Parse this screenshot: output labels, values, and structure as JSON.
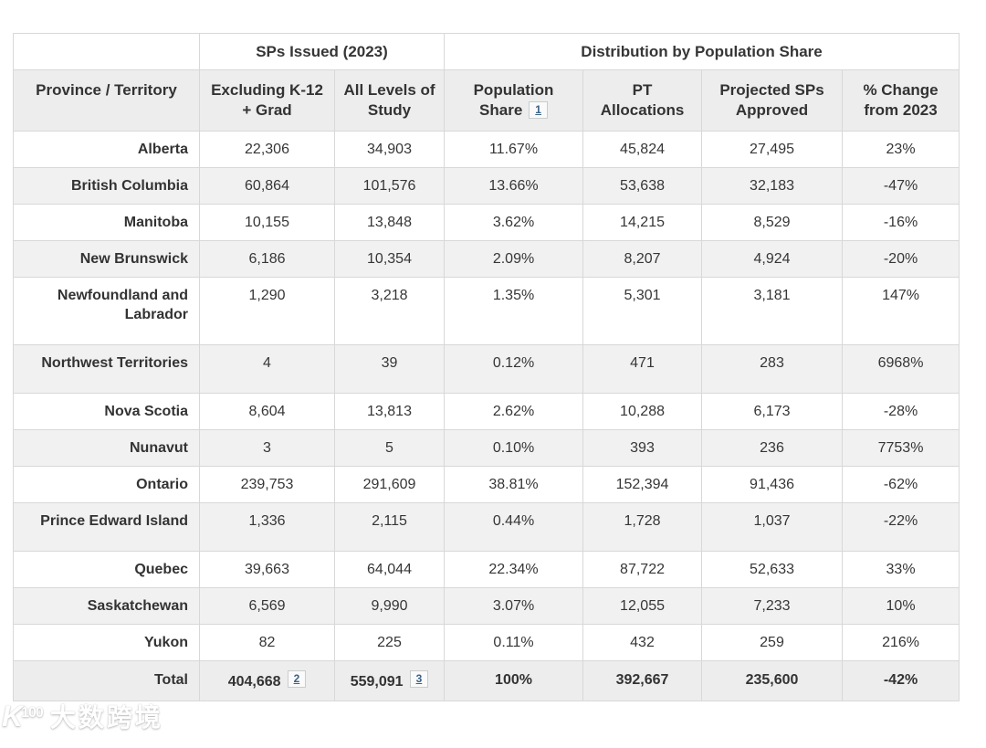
{
  "table": {
    "group_headers": {
      "sps_issued": "SPs Issued (2023)",
      "distribution": "Distribution by Population Share"
    },
    "columns": [
      "Province / Territory",
      "Excluding K-12 + Grad",
      "All Levels of Study",
      "Population Share",
      "PT Allocations",
      "Projected SPs Approved",
      "% Change from 2023"
    ],
    "footnotes": {
      "population_share": "1",
      "total_excluding": "2",
      "total_all_levels": "3"
    },
    "rows": [
      {
        "province": "Alberta",
        "cells": [
          "22,306",
          "34,903",
          "11.67%",
          "45,824",
          "27,495",
          "23%"
        ]
      },
      {
        "province": "British Columbia",
        "cells": [
          "60,864",
          "101,576",
          "13.66%",
          "53,638",
          "32,183",
          "-47%"
        ]
      },
      {
        "province": "Manitoba",
        "cells": [
          "10,155",
          "13,848",
          "3.62%",
          "14,215",
          "8,529",
          "-16%"
        ]
      },
      {
        "province": "New Brunswick",
        "cells": [
          "6,186",
          "10,354",
          "2.09%",
          "8,207",
          "4,924",
          "-20%"
        ]
      },
      {
        "province": "Newfoundland and Labrador",
        "cells": [
          "1,290",
          "3,218",
          "1.35%",
          "5,301",
          "3,181",
          "147%"
        ]
      },
      {
        "province": "Northwest Territories",
        "cells": [
          "4",
          "39",
          "0.12%",
          "471",
          "283",
          "6968%"
        ]
      },
      {
        "province": "Nova Scotia",
        "cells": [
          "8,604",
          "13,813",
          "2.62%",
          "10,288",
          "6,173",
          "-28%"
        ]
      },
      {
        "province": "Nunavut",
        "cells": [
          "3",
          "5",
          "0.10%",
          "393",
          "236",
          "7753%"
        ]
      },
      {
        "province": "Ontario",
        "cells": [
          "239,753",
          "291,609",
          "38.81%",
          "152,394",
          "91,436",
          "-62%"
        ]
      },
      {
        "province": "Prince Edward Island",
        "cells": [
          "1,336",
          "2,115",
          "0.44%",
          "1,728",
          "1,037",
          "-22%"
        ]
      },
      {
        "province": "Quebec",
        "cells": [
          "39,663",
          "64,044",
          "22.34%",
          "87,722",
          "52,633",
          "33%"
        ]
      },
      {
        "province": "Saskatchewan",
        "cells": [
          "6,569",
          "9,990",
          "3.07%",
          "12,055",
          "7,233",
          "10%"
        ]
      },
      {
        "province": "Yukon",
        "cells": [
          "82",
          "225",
          "0.11%",
          "432",
          "259",
          "216%"
        ]
      }
    ],
    "total": {
      "label": "Total",
      "cells": [
        "404,668",
        "559,091",
        "100%",
        "392,667",
        "235,600",
        "-42%"
      ]
    }
  },
  "watermark": {
    "logo_letter": "K",
    "logo_number": "100",
    "text": "大数跨境"
  },
  "colors": {
    "header_bg": "#ededed",
    "stripe_bg": "#f1f1f1",
    "border": "#d8d8d8",
    "text": "#363636",
    "footnote_link": "#3a6186"
  }
}
